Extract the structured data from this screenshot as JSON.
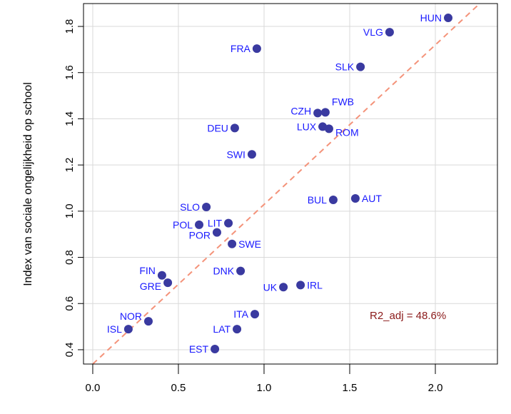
{
  "chart_data": {
    "type": "scatter",
    "title": "",
    "xlabel": "",
    "ylabel": "Index van sociale ongelijkheid op school",
    "xlim": [
      -0.054,
      2.3625
    ],
    "ylim": [
      0.338,
      1.899
    ],
    "x_ticks": [
      "0.0",
      "0.5",
      "1.0",
      "1.5",
      "2.0"
    ],
    "y_ticks": [
      "0.4",
      "0.6",
      "0.8",
      "1.0",
      "1.2",
      "1.4",
      "1.6",
      "1.8"
    ],
    "grid": true,
    "points": [
      {
        "label": "HUN",
        "x": 2.075,
        "y": 1.837
      },
      {
        "label": "VLG",
        "x": 1.733,
        "y": 1.775
      },
      {
        "label": "FRA",
        "x": 0.958,
        "y": 1.704
      },
      {
        "label": "SLK",
        "x": 1.563,
        "y": 1.625
      },
      {
        "label": "FWB",
        "x": 1.358,
        "y": 1.428
      },
      {
        "label": "CZH",
        "x": 1.313,
        "y": 1.425
      },
      {
        "label": "LUX",
        "x": 1.342,
        "y": 1.366
      },
      {
        "label": "ROM",
        "x": 1.379,
        "y": 1.357
      },
      {
        "label": "DEU",
        "x": 0.829,
        "y": 1.36
      },
      {
        "label": "SWI",
        "x": 0.929,
        "y": 1.246
      },
      {
        "label": "AUT",
        "x": 1.533,
        "y": 1.055
      },
      {
        "label": "BUL",
        "x": 1.404,
        "y": 1.049
      },
      {
        "label": "SLO",
        "x": 0.663,
        "y": 1.018
      },
      {
        "label": "LIT",
        "x": 0.792,
        "y": 0.948
      },
      {
        "label": "POL",
        "x": 0.621,
        "y": 0.941
      },
      {
        "label": "POR",
        "x": 0.725,
        "y": 0.908
      },
      {
        "label": "SWE",
        "x": 0.813,
        "y": 0.858
      },
      {
        "label": "DNK",
        "x": 0.863,
        "y": 0.741
      },
      {
        "label": "FIN",
        "x": 0.404,
        "y": 0.722
      },
      {
        "label": "GRE",
        "x": 0.438,
        "y": 0.69
      },
      {
        "label": "IRL",
        "x": 1.213,
        "y": 0.68
      },
      {
        "label": "UK",
        "x": 1.113,
        "y": 0.671
      },
      {
        "label": "ITA",
        "x": 0.946,
        "y": 0.554
      },
      {
        "label": "NOR",
        "x": 0.325,
        "y": 0.523
      },
      {
        "label": "ISL",
        "x": 0.208,
        "y": 0.489
      },
      {
        "label": "LAT",
        "x": 0.842,
        "y": 0.489
      },
      {
        "label": "EST",
        "x": 0.713,
        "y": 0.403
      }
    ],
    "fit_line": {
      "intercept": 0.338,
      "slope": 0.691,
      "style": "dashed"
    },
    "annotation": "R2_adj = 48.6%",
    "colors": {
      "point": "#3a3aa0",
      "label": "#1a1aff",
      "fit": "#f4937a",
      "annotation": "#8b1a1a",
      "grid": "#d9d9d9"
    }
  }
}
